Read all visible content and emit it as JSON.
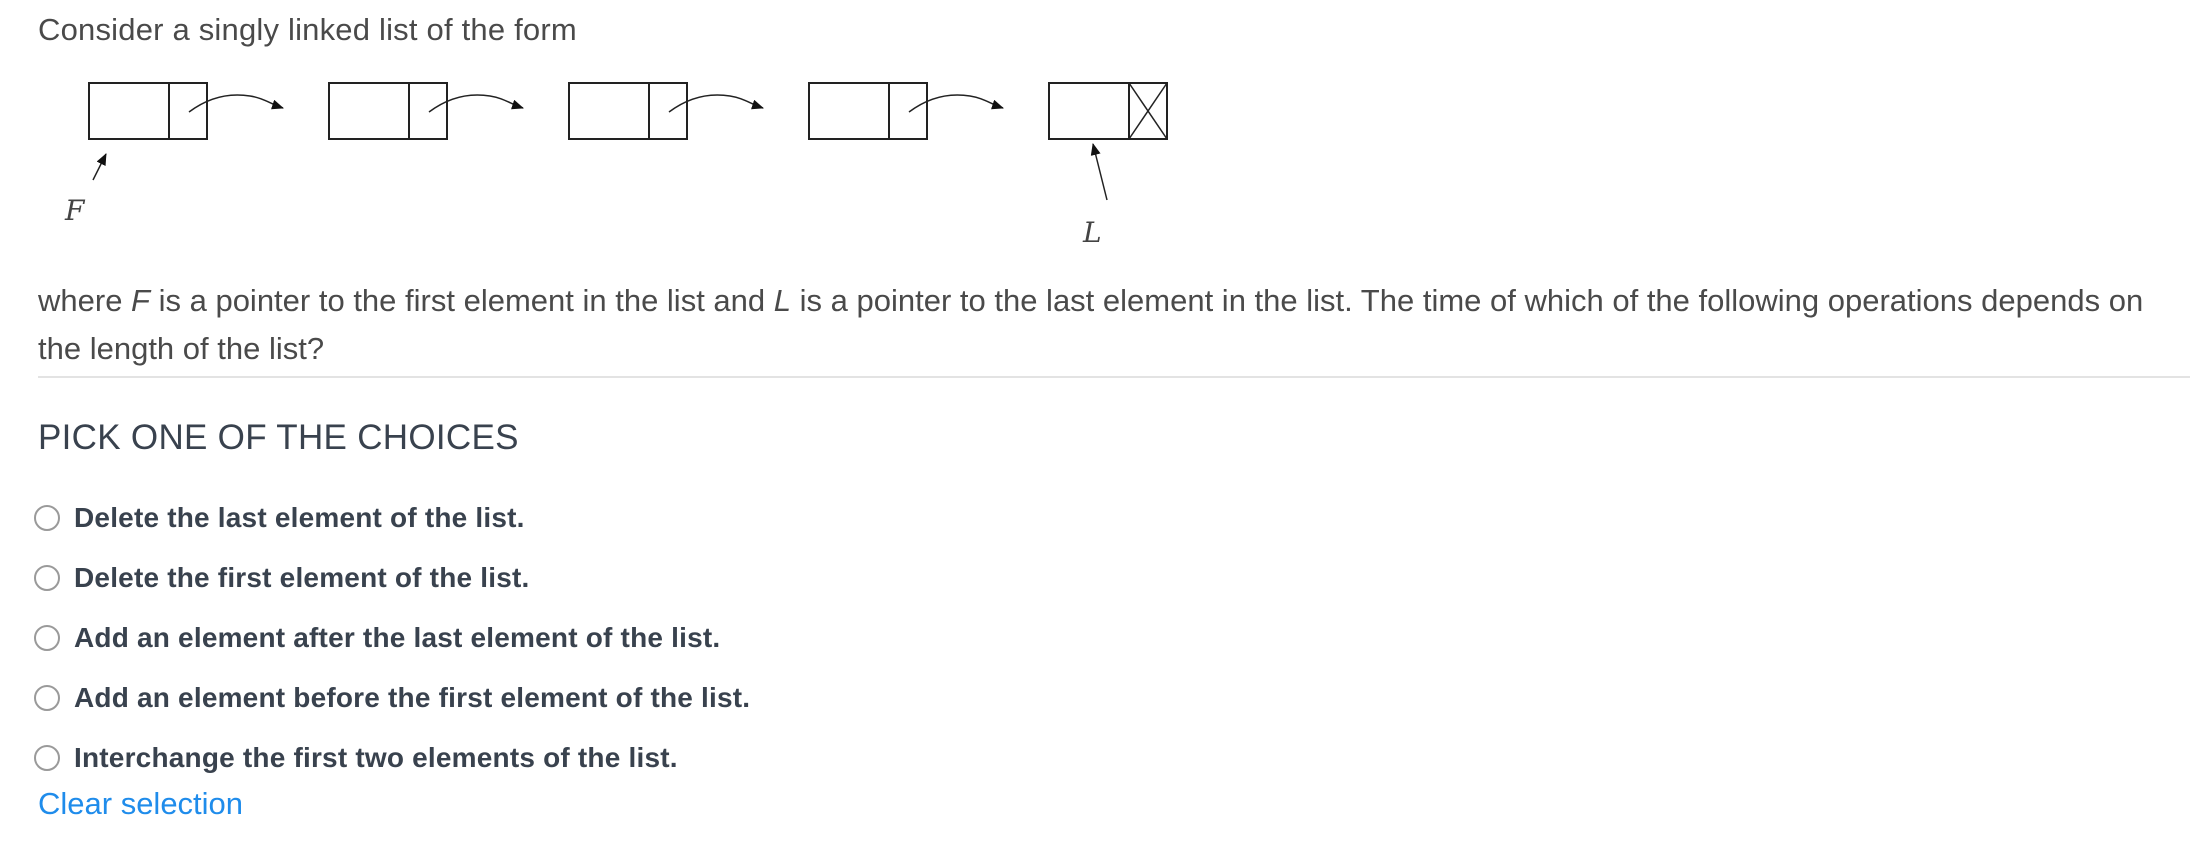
{
  "intro_text": "Consider a singly linked list of the form",
  "diagram": {
    "first_pointer_label": "F",
    "last_pointer_label": "L",
    "node_count": 5
  },
  "question": {
    "part1": "where ",
    "f_label": "F",
    "part2": " is a pointer to the first element in the list and ",
    "l_label": "L",
    "part3": " is a pointer to the last element in the list. The time of which of the following operations depends on the length of the list?"
  },
  "pick_heading": "PICK ONE OF THE CHOICES",
  "choices": [
    {
      "label": "Delete the last element of the list.",
      "selected": false
    },
    {
      "label": "Delete the first element of the list.",
      "selected": false
    },
    {
      "label": "Add an element after the last element of the list.",
      "selected": false
    },
    {
      "label": "Add an element before the first element of the list.",
      "selected": false
    },
    {
      "label": "Interchange the first two elements of the list.",
      "selected": false
    }
  ],
  "clear_selection_label": "Clear selection",
  "colors": {
    "link": "#1f8ceb",
    "heading": "#39424e",
    "divider": "#e3e3e3"
  }
}
